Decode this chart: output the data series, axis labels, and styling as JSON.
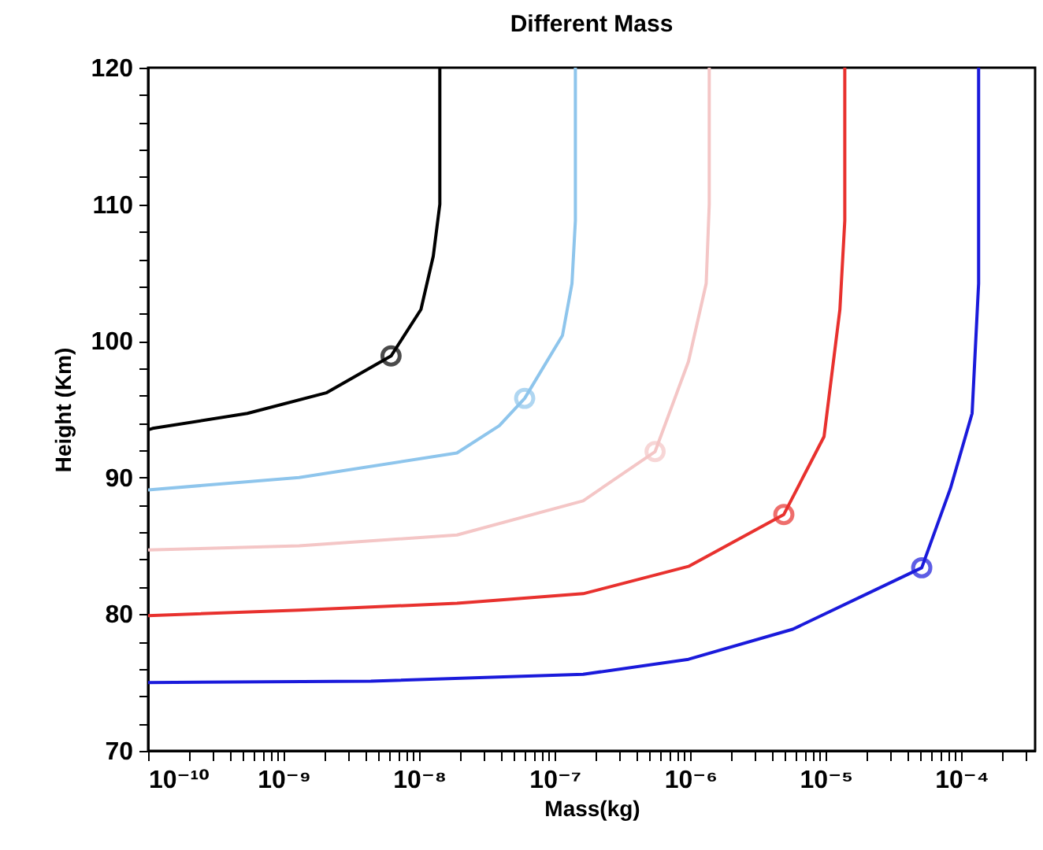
{
  "chart_data": {
    "type": "line",
    "title": "Different Mass",
    "xlabel": "Mass(kg)",
    "ylabel": "Height (Km)",
    "log": "x",
    "grid": false,
    "legend": false,
    "xlim": [
      1e-10,
      0.00035
    ],
    "ylim": [
      70,
      120
    ],
    "xticks": [
      {
        "value": 1e-10,
        "label": "10⁻¹⁰"
      },
      {
        "value": 2e-10,
        "label": null
      },
      {
        "value": 3e-10,
        "label": null
      },
      {
        "value": 4e-10,
        "label": null
      },
      {
        "value": 5e-10,
        "label": null
      },
      {
        "value": 6e-10,
        "label": null
      },
      {
        "value": 7e-10,
        "label": null
      },
      {
        "value": 8e-10,
        "label": null
      },
      {
        "value": 9e-10,
        "label": null
      },
      {
        "value": 1e-09,
        "label": "10⁻⁹"
      },
      {
        "value": 2e-09,
        "label": null
      },
      {
        "value": 3e-09,
        "label": null
      },
      {
        "value": 4e-09,
        "label": null
      },
      {
        "value": 5e-09,
        "label": null
      },
      {
        "value": 6e-09,
        "label": null
      },
      {
        "value": 7e-09,
        "label": null
      },
      {
        "value": 8e-09,
        "label": null
      },
      {
        "value": 9e-09,
        "label": null
      },
      {
        "value": 1e-08,
        "label": "10⁻⁸"
      },
      {
        "value": 2e-08,
        "label": null
      },
      {
        "value": 3e-08,
        "label": null
      },
      {
        "value": 4e-08,
        "label": null
      },
      {
        "value": 5e-08,
        "label": null
      },
      {
        "value": 6e-08,
        "label": null
      },
      {
        "value": 7e-08,
        "label": null
      },
      {
        "value": 8e-08,
        "label": null
      },
      {
        "value": 9e-08,
        "label": null
      },
      {
        "value": 1e-07,
        "label": "10⁻⁷"
      },
      {
        "value": 2e-07,
        "label": null
      },
      {
        "value": 3e-07,
        "label": null
      },
      {
        "value": 4e-07,
        "label": null
      },
      {
        "value": 5e-07,
        "label": null
      },
      {
        "value": 6e-07,
        "label": null
      },
      {
        "value": 7e-07,
        "label": null
      },
      {
        "value": 8e-07,
        "label": null
      },
      {
        "value": 9e-07,
        "label": null
      },
      {
        "value": 1e-06,
        "label": "10⁻⁶"
      },
      {
        "value": 2e-06,
        "label": null
      },
      {
        "value": 3e-06,
        "label": null
      },
      {
        "value": 4e-06,
        "label": null
      },
      {
        "value": 5e-06,
        "label": null
      },
      {
        "value": 6e-06,
        "label": null
      },
      {
        "value": 7e-06,
        "label": null
      },
      {
        "value": 8e-06,
        "label": null
      },
      {
        "value": 9e-06,
        "label": null
      },
      {
        "value": 1e-05,
        "label": "10⁻⁵"
      },
      {
        "value": 2e-05,
        "label": null
      },
      {
        "value": 3e-05,
        "label": null
      },
      {
        "value": 4e-05,
        "label": null
      },
      {
        "value": 5e-05,
        "label": null
      },
      {
        "value": 6e-05,
        "label": null
      },
      {
        "value": 7e-05,
        "label": null
      },
      {
        "value": 8e-05,
        "label": null
      },
      {
        "value": 9e-05,
        "label": null
      },
      {
        "value": 0.0001,
        "label": "10⁻⁴"
      },
      {
        "value": 0.0002,
        "label": null
      },
      {
        "value": 0.0003,
        "label": null
      }
    ],
    "yticks": [
      70,
      {
        "value": 72,
        "label": null
      },
      {
        "value": 74,
        "label": null
      },
      {
        "value": 76,
        "label": null
      },
      {
        "value": 78,
        "label": null
      },
      80,
      {
        "value": 82,
        "label": null
      },
      {
        "value": 84,
        "label": null
      },
      {
        "value": 86,
        "label": null
      },
      {
        "value": 88,
        "label": null
      },
      90,
      {
        "value": 92,
        "label": null
      },
      {
        "value": 94,
        "label": null
      },
      {
        "value": 96,
        "label": null
      },
      {
        "value": 98,
        "label": null
      },
      100,
      {
        "value": 102,
        "label": null
      },
      {
        "value": 104,
        "label": null
      },
      {
        "value": 106,
        "label": null
      },
      {
        "value": 108,
        "label": null
      },
      110,
      {
        "value": 112,
        "label": null
      },
      {
        "value": 114,
        "label": null
      },
      {
        "value": 116,
        "label": null
      },
      {
        "value": 118,
        "label": null
      },
      120
    ],
    "series": [
      {
        "type": "line",
        "color": "#000000",
        "x": [
          1e-10,
          1.08e-10,
          5.4e-10,
          2.06e-09,
          6.2e-09,
          1.03e-08,
          1.27e-08,
          1.42e-08,
          1.42e-08
        ],
        "values": [
          93.5,
          93.6,
          94.7,
          96.2,
          98.9,
          102.3,
          106.2,
          110,
          120
        ]
      },
      {
        "type": "line",
        "color": "#8ec5ec",
        "x": [
          1e-10,
          1.3e-09,
          1.9e-08,
          3.9e-08,
          6e-08,
          1.14e-07,
          1.34e-07,
          1.42e-07,
          1.42e-07
        ],
        "values": [
          89.1,
          90.0,
          91.8,
          93.8,
          95.8,
          100.4,
          104.2,
          108.8,
          120
        ]
      },
      {
        "type": "line",
        "color": "#f4c6c6",
        "x": [
          1e-10,
          1.3e-09,
          1.9e-08,
          1.62e-07,
          5.5e-07,
          9.7e-07,
          1.31e-06,
          1.38e-06,
          1.38e-06
        ],
        "values": [
          84.7,
          85.0,
          85.8,
          88.3,
          91.9,
          98.5,
          104.2,
          110,
          120
        ]
      },
      {
        "type": "line",
        "color": "#e8312e",
        "x": [
          1e-10,
          1.3e-09,
          1.9e-08,
          1.62e-07,
          9.7e-07,
          4.9e-06,
          9.7e-06,
          1.27e-05,
          1.38e-05,
          1.38e-05
        ],
        "values": [
          79.9,
          80.3,
          80.8,
          81.5,
          83.5,
          87.3,
          93.0,
          102.3,
          108.8,
          120
        ]
      },
      {
        "type": "line",
        "color": "#1a1adb",
        "x": [
          1e-10,
          4.4e-09,
          1.62e-07,
          9.7e-07,
          5.7e-06,
          5.1e-05,
          8.3e-05,
          0.00012,
          0.000134,
          0.000134
        ],
        "values": [
          75.0,
          75.1,
          75.6,
          76.7,
          78.9,
          83.4,
          89.2,
          94.7,
          104.2,
          120
        ]
      },
      {
        "type": "scatter",
        "marker": "circle",
        "color": "#000000",
        "x": [
          6.2e-09
        ],
        "values": [
          98.9
        ]
      },
      {
        "type": "scatter",
        "marker": "circle",
        "color": "#8ec5ec",
        "x": [
          6e-08
        ],
        "values": [
          95.8
        ]
      },
      {
        "type": "scatter",
        "marker": "circle",
        "color": "#f4c6c6",
        "x": [
          5.5e-07
        ],
        "values": [
          91.9
        ]
      },
      {
        "type": "scatter",
        "marker": "circle",
        "color": "#e8312e",
        "x": [
          4.9e-06
        ],
        "values": [
          87.3
        ]
      },
      {
        "type": "scatter",
        "marker": "circle",
        "color": "#1a1adb",
        "x": [
          5.1e-05
        ],
        "values": [
          83.4
        ]
      }
    ]
  }
}
